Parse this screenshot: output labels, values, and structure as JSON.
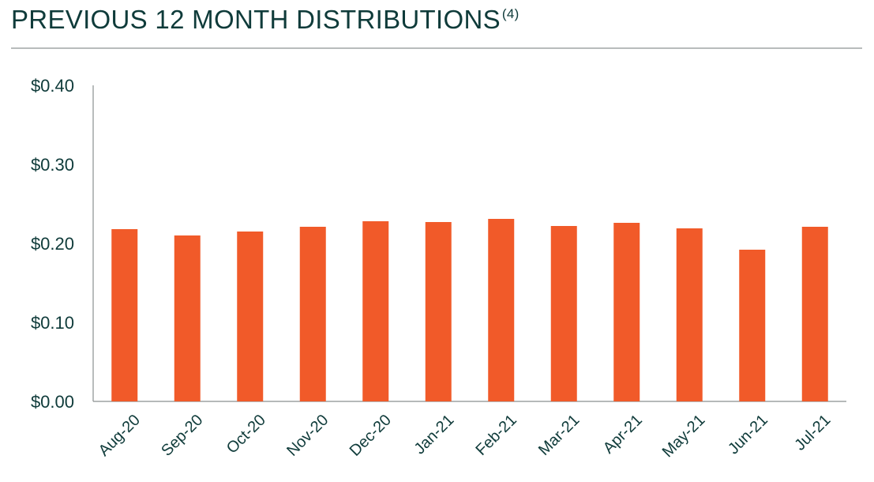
{
  "title": {
    "text": "PREVIOUS 12 MONTH DISTRIBUTIONS",
    "footnote": "(4)"
  },
  "colors": {
    "bar": "#f15a29",
    "text": "#0f3b3a",
    "axis": "#8a8f8f"
  },
  "chart_data": {
    "type": "bar",
    "title": "PREVIOUS 12 MONTH DISTRIBUTIONS",
    "xlabel": "",
    "ylabel": "",
    "ylim": [
      0,
      0.4
    ],
    "yticks": [
      0.0,
      0.1,
      0.2,
      0.3,
      0.4
    ],
    "ytick_labels": [
      "$0.00",
      "$0.10",
      "$0.20",
      "$0.30",
      "$0.40"
    ],
    "categories": [
      "Aug-20",
      "Sep-20",
      "Oct-20",
      "Nov-20",
      "Dec-20",
      "Jan-21",
      "Feb-21",
      "Mar-21",
      "Apr-21",
      "May-21",
      "Jun-21",
      "Jul-21"
    ],
    "values": [
      0.218,
      0.21,
      0.215,
      0.221,
      0.228,
      0.227,
      0.231,
      0.222,
      0.226,
      0.219,
      0.192,
      0.221
    ],
    "grid": false,
    "legend": "none"
  }
}
